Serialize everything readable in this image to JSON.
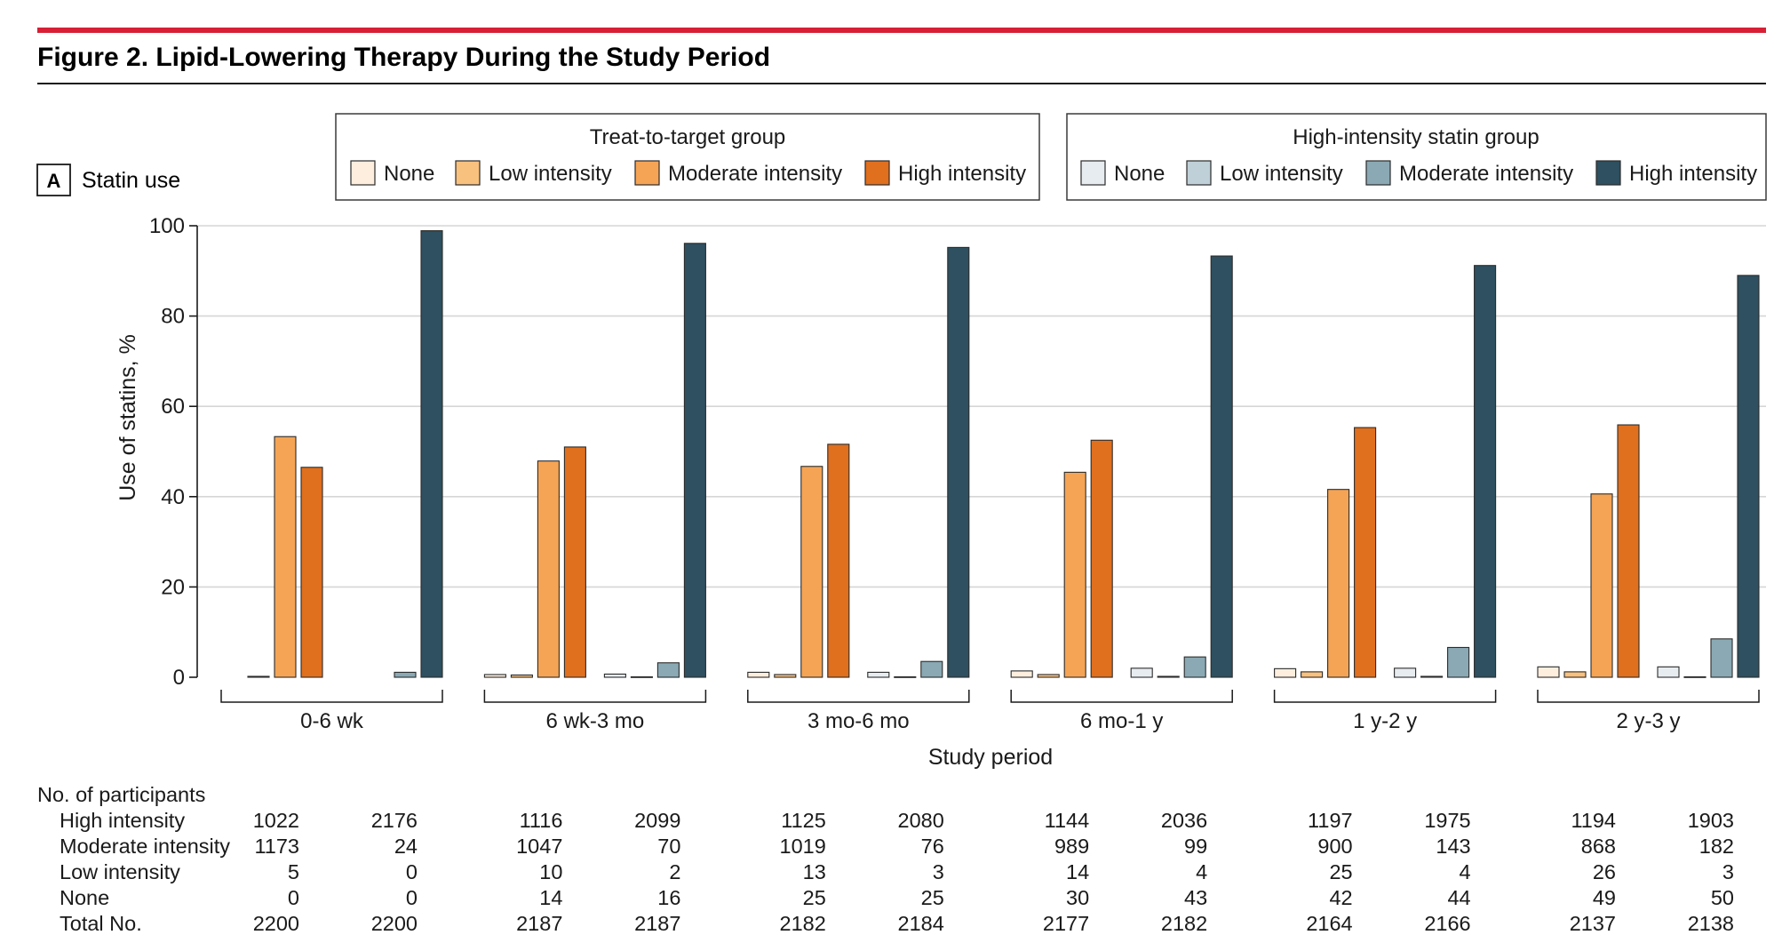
{
  "figure_title": "Figure 2. Lipid-Lowering Therapy During the Study Period",
  "panel": {
    "letter": "A",
    "title": "Statin use"
  },
  "colors": {
    "accent_rule": "#d71f35",
    "treat": [
      "#fdeedd",
      "#f9c17e",
      "#f5a455",
      "#e06f1e"
    ],
    "high": [
      "#e6ecef",
      "#c0d0d8",
      "#8aa9b4",
      "#2e5060"
    ],
    "grid": "#d6d6d6",
    "bar_stroke": "#2b2b2b"
  },
  "legends": [
    {
      "title": "Treat-to-target group",
      "items": [
        "None",
        "Low intensity",
        "Moderate intensity",
        "High intensity"
      ]
    },
    {
      "title": "High-intensity statin group",
      "items": [
        "None",
        "Low intensity",
        "Moderate intensity",
        "High intensity"
      ]
    }
  ],
  "chart_data": {
    "type": "bar",
    "title": "Statin use",
    "xlabel": "Study period",
    "ylabel": "Use of statins, %",
    "ylim": [
      0,
      100
    ],
    "yticks": [
      0,
      20,
      40,
      60,
      80,
      100
    ],
    "grid": true,
    "legend_position": "top",
    "categories": [
      "0-6 wk",
      "6 wk-3 mo",
      "3 mo-6 mo",
      "6 mo-1 y",
      "1 y-2 y",
      "2 y-3 y"
    ],
    "series": [
      {
        "name": "None",
        "group": "Treat-to-target group",
        "values": [
          0,
          0.6,
          1.1,
          1.4,
          1.9,
          2.3
        ]
      },
      {
        "name": "Low intensity",
        "group": "Treat-to-target group",
        "values": [
          0.2,
          0.5,
          0.6,
          0.6,
          1.2,
          1.2
        ]
      },
      {
        "name": "Moderate intensity",
        "group": "Treat-to-target group",
        "values": [
          53.3,
          47.9,
          46.7,
          45.4,
          41.6,
          40.6
        ]
      },
      {
        "name": "High intensity",
        "group": "Treat-to-target group",
        "values": [
          46.5,
          51.0,
          51.6,
          52.5,
          55.3,
          55.9
        ]
      },
      {
        "name": "None",
        "group": "High-intensity statin group",
        "values": [
          0,
          0.7,
          1.1,
          2.0,
          2.0,
          2.3
        ]
      },
      {
        "name": "Low intensity",
        "group": "High-intensity statin group",
        "values": [
          0,
          0.1,
          0.1,
          0.2,
          0.2,
          0.1
        ]
      },
      {
        "name": "Moderate intensity",
        "group": "High-intensity statin group",
        "values": [
          1.1,
          3.2,
          3.5,
          4.5,
          6.6,
          8.5
        ]
      },
      {
        "name": "High intensity",
        "group": "High-intensity statin group",
        "values": [
          98.9,
          96.1,
          95.2,
          93.3,
          91.2,
          89.0
        ]
      }
    ]
  },
  "participants_table": {
    "heading": "No. of participants",
    "rows": [
      {
        "label": "High intensity",
        "values": [
          "1022",
          "2176",
          "1116",
          "2099",
          "1125",
          "2080",
          "1144",
          "2036",
          "1197",
          "1975",
          "1194",
          "1903"
        ]
      },
      {
        "label": "Moderate intensity",
        "values": [
          "1173",
          "24",
          "1047",
          "70",
          "1019",
          "76",
          "989",
          "99",
          "900",
          "143",
          "868",
          "182"
        ]
      },
      {
        "label": "Low intensity",
        "values": [
          "5",
          "0",
          "10",
          "2",
          "13",
          "3",
          "14",
          "4",
          "25",
          "4",
          "26",
          "3"
        ]
      },
      {
        "label": "None",
        "values": [
          "0",
          "0",
          "14",
          "16",
          "25",
          "25",
          "30",
          "43",
          "42",
          "44",
          "49",
          "50"
        ]
      },
      {
        "label": "Total No.",
        "values": [
          "2200",
          "2200",
          "2187",
          "2187",
          "2182",
          "2184",
          "2177",
          "2182",
          "2164",
          "2166",
          "2137",
          "2138"
        ]
      }
    ]
  }
}
